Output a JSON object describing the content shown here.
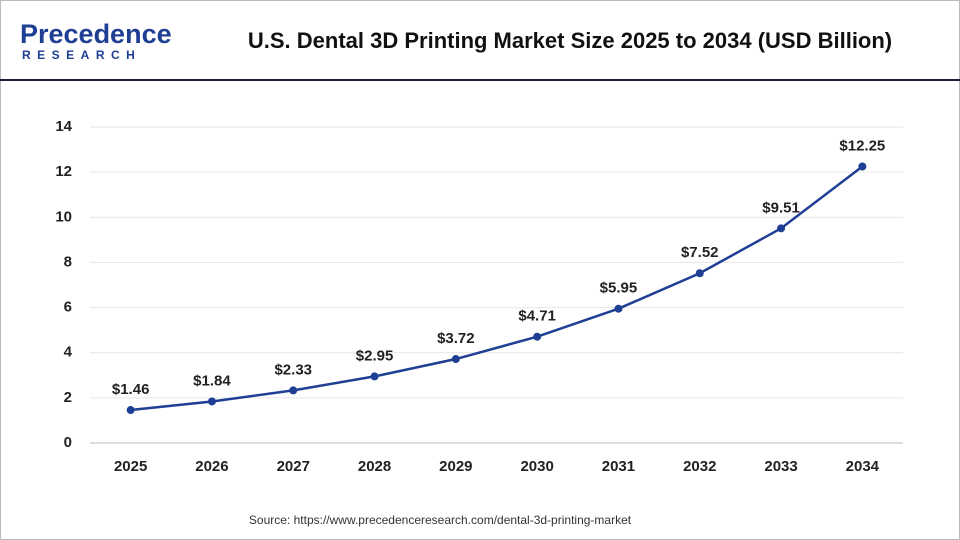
{
  "brand": {
    "name": "Precedence",
    "tagline": "RESEARCH"
  },
  "chart_data": {
    "type": "line",
    "title": "U.S. Dental 3D Printing Market Size 2025 to 2034 (USD Billion)",
    "categories": [
      "2025",
      "2026",
      "2027",
      "2028",
      "2029",
      "2030",
      "2031",
      "2032",
      "2033",
      "2034"
    ],
    "values": [
      1.46,
      1.84,
      2.33,
      2.95,
      3.72,
      4.71,
      5.95,
      7.52,
      9.51,
      12.25
    ],
    "value_labels": [
      "$1.46",
      "$1.84",
      "$2.33",
      "$2.95",
      "$3.72",
      "$4.71",
      "$5.95",
      "$7.52",
      "$9.51",
      "$12.25"
    ],
    "color": "#1f3f95",
    "ylim": [
      0,
      14
    ],
    "yticks": [
      0,
      2,
      4,
      6,
      8,
      10,
      12,
      14
    ],
    "grid": true,
    "source": "Source: https://www.precedenceresearch.com/dental-3d-printing-market"
  }
}
